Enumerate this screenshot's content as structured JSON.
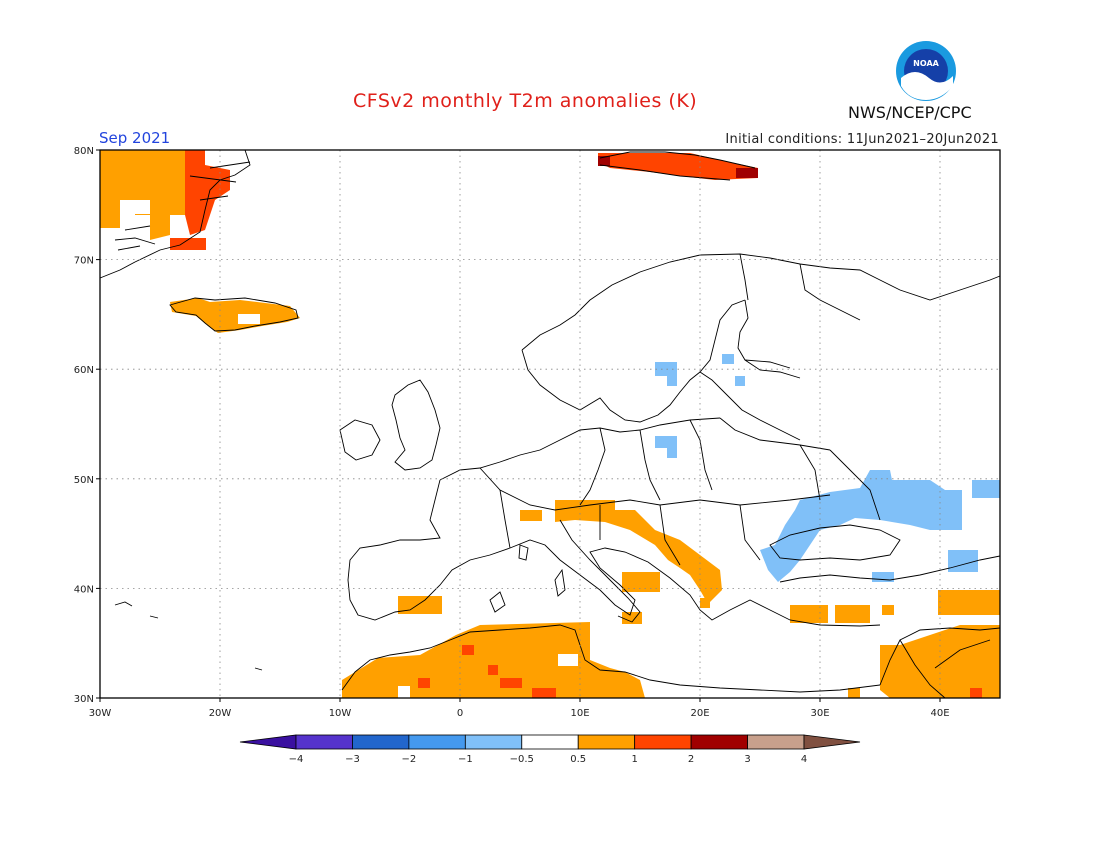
{
  "title": "CFSv2 monthly T2m anomalies (K)",
  "valid_month": "Sep 2021",
  "initial_conditions": "Initial conditions: 11Jun2021–20Jun2021",
  "agency": "NWS/NCEP/CPC",
  "logo_text": "NOAA",
  "map": {
    "lon_range": [
      -30,
      45
    ],
    "lat_range": [
      30,
      80
    ],
    "lat_labels": [
      "80N",
      "70N",
      "60N",
      "50N",
      "40N",
      "30N"
    ],
    "lon_labels": [
      "30W",
      "20W",
      "10W",
      "0",
      "10E",
      "20E",
      "30E",
      "40E"
    ],
    "gridlines": "dotted"
  },
  "legend": {
    "colors": [
      "#3a10a0",
      "#5533cc",
      "#2266cc",
      "#4499ee",
      "#80c0f8",
      "#ffffff",
      "#ffa000",
      "#ff4400",
      "#a00000",
      "#c8a08c",
      "#805040"
    ],
    "labels": [
      "−4",
      "−3",
      "−2",
      "−1",
      "−0.5",
      "0.5",
      "1",
      "2",
      "3",
      "4"
    ]
  },
  "anomaly_regions": [
    {
      "name": "greenland-east",
      "class": "0.5 to 1",
      "color": "#ffa000"
    },
    {
      "name": "greenland-coast",
      "class": "1 to 2",
      "color": "#ff4400"
    },
    {
      "name": "iceland",
      "class": "0.5 to 1",
      "color": "#ffa000"
    },
    {
      "name": "svalbard",
      "class": "1 to 2",
      "color": "#ff4400"
    },
    {
      "name": "svalbard-east",
      "class": "2 to 3",
      "color": "#a00000"
    },
    {
      "name": "alps-balkans",
      "class": "0.5 to 1",
      "color": "#ffa000"
    },
    {
      "name": "ukraine-russia",
      "class": "-1 to -0.5",
      "color": "#80c0f8"
    },
    {
      "name": "north-africa",
      "class": "0.5 to 1",
      "color": "#ffa000"
    },
    {
      "name": "middle-east",
      "class": "0.5 to 1",
      "color": "#ffa000"
    }
  ]
}
